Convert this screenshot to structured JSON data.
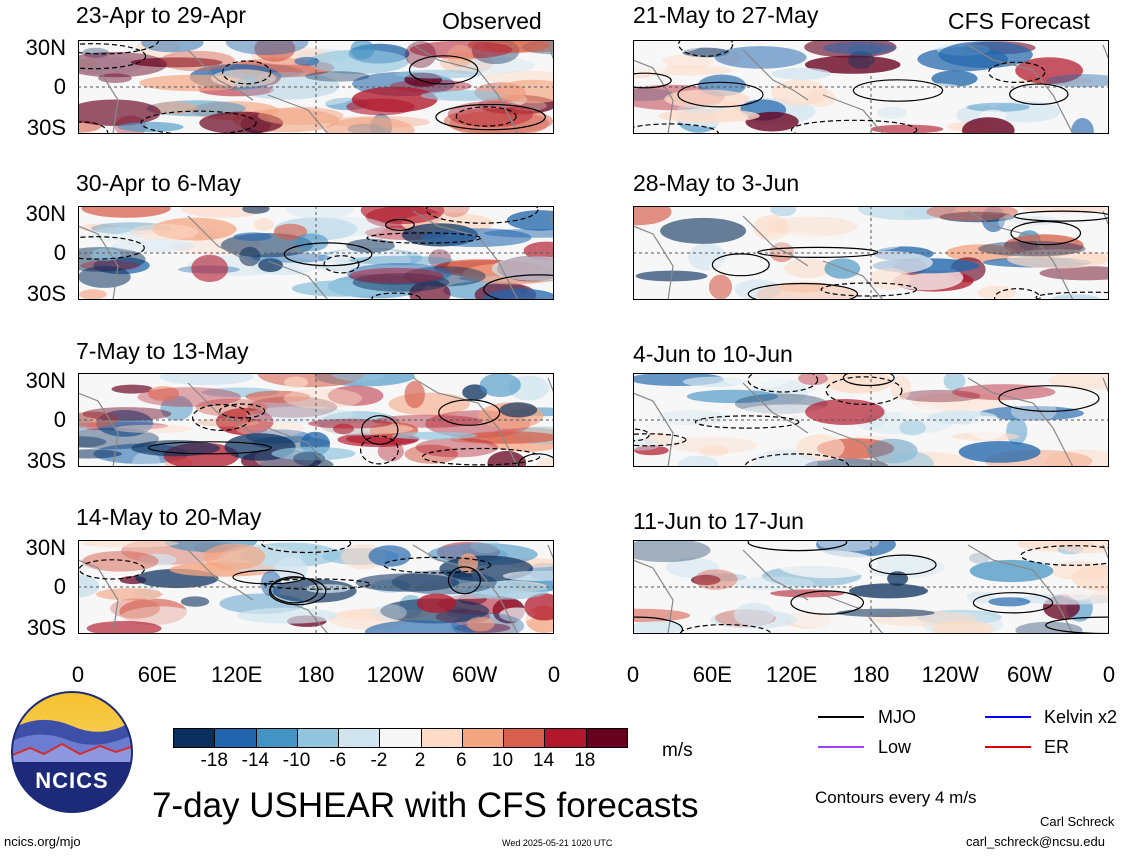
{
  "panels_left": [
    {
      "title": "23-Apr to 29-Apr",
      "tag": "Observed"
    },
    {
      "title": "30-Apr to 6-May",
      "tag": ""
    },
    {
      "title": "7-May to 13-May",
      "tag": ""
    },
    {
      "title": "14-May to 20-May",
      "tag": ""
    }
  ],
  "panels_right": [
    {
      "title": "21-May to 27-May",
      "tag": "CFS Forecast"
    },
    {
      "title": "28-May to 3-Jun",
      "tag": ""
    },
    {
      "title": "4-Jun to 10-Jun",
      "tag": ""
    },
    {
      "title": "11-Jun to 17-Jun",
      "tag": ""
    }
  ],
  "y_ticks": [
    "30N",
    "0",
    "30S"
  ],
  "x_ticks": [
    "0",
    "60E",
    "120E",
    "180",
    "120W",
    "60W",
    "0"
  ],
  "colorbar": {
    "colors": [
      "#0a2f5c",
      "#2166ac",
      "#4393c3",
      "#92c5de",
      "#d1e5f0",
      "#f7f7f7",
      "#fddbc7",
      "#f4a582",
      "#d6604d",
      "#b2182b",
      "#67001f"
    ],
    "labels": [
      "-18",
      "-14",
      "-10",
      "-6",
      "-2",
      "2",
      "6",
      "10",
      "14",
      "18"
    ],
    "unit": "m/s"
  },
  "legend": {
    "items": [
      {
        "label": "MJO",
        "color": "#000000"
      },
      {
        "label": "Kelvin x2",
        "color": "#0000ff"
      },
      {
        "label": "Low",
        "color": "#a040ff"
      },
      {
        "label": "ER",
        "color": "#e00000"
      }
    ],
    "contours": "Contours every 4 m/s"
  },
  "main_title": "7-day USHEAR with CFS forecasts",
  "logo_text": "NCICS",
  "footer": {
    "left": "ncics.org/mjo",
    "center": "Wed 2025-05-21 1020 UTC",
    "author": "Carl Schreck",
    "email": "carl_schreck@ncsu.edu"
  }
}
